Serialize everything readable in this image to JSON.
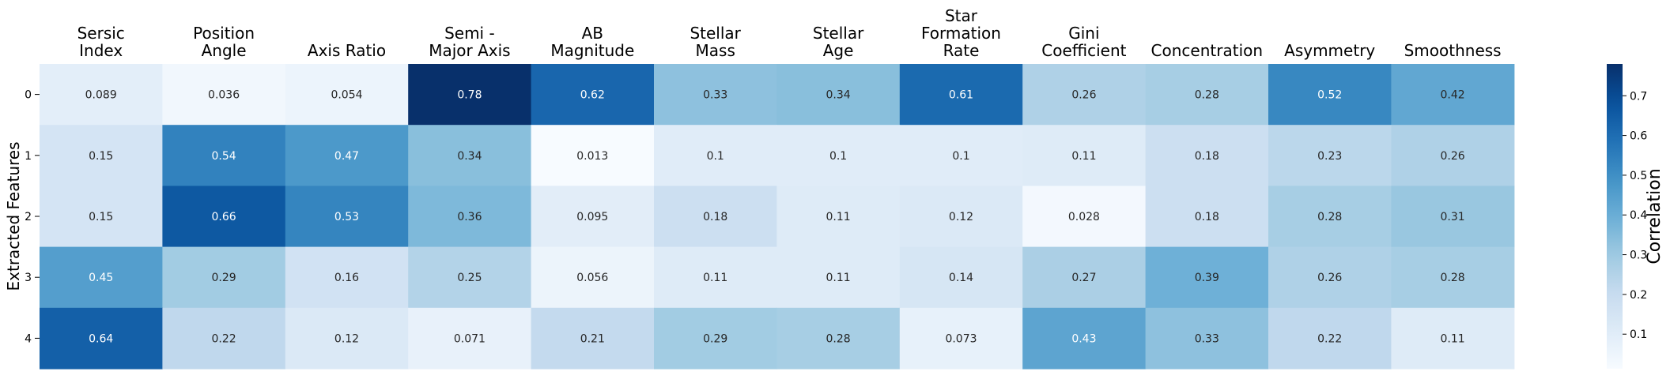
{
  "chart_data": {
    "type": "heatmap",
    "columns": [
      [
        "Sersic",
        "Index"
      ],
      [
        "Position",
        "Angle"
      ],
      [
        "Axis Ratio"
      ],
      [
        "Semi -",
        "Major Axis"
      ],
      [
        "AB",
        "Magnitude"
      ],
      [
        "Stellar",
        "Mass"
      ],
      [
        "Stellar",
        "Age"
      ],
      [
        "Star",
        "Formation",
        "Rate"
      ],
      [
        "Gini",
        "Coefficient"
      ],
      [
        "Concentration"
      ],
      [
        "Asymmetry"
      ],
      [
        "Smoothness"
      ]
    ],
    "rows": [
      "0",
      "1",
      "2",
      "3",
      "4"
    ],
    "values": [
      [
        0.089,
        0.036,
        0.054,
        0.78,
        0.62,
        0.33,
        0.34,
        0.61,
        0.26,
        0.28,
        0.52,
        0.42
      ],
      [
        0.15,
        0.54,
        0.47,
        0.34,
        0.013,
        0.1,
        0.1,
        0.1,
        0.11,
        0.18,
        0.23,
        0.26
      ],
      [
        0.15,
        0.66,
        0.53,
        0.36,
        0.095,
        0.18,
        0.11,
        0.12,
        0.028,
        0.18,
        0.28,
        0.31
      ],
      [
        0.45,
        0.29,
        0.16,
        0.25,
        0.056,
        0.11,
        0.11,
        0.14,
        0.27,
        0.39,
        0.26,
        0.28
      ],
      [
        0.64,
        0.22,
        0.12,
        0.071,
        0.21,
        0.29,
        0.28,
        0.073,
        0.43,
        0.33,
        0.22,
        0.11
      ]
    ],
    "ylabel": "Extracted Features",
    "colorbar": {
      "label": "Correlation",
      "range": [
        0.013,
        0.78
      ],
      "ticks": [
        0.1,
        0.2,
        0.3,
        0.4,
        0.5,
        0.6,
        0.7
      ],
      "tick_labels": [
        "0.1",
        "0.2",
        "0.3",
        "0.4",
        "0.5",
        "0.6",
        "0.7"
      ]
    },
    "colormap": "Blues"
  }
}
